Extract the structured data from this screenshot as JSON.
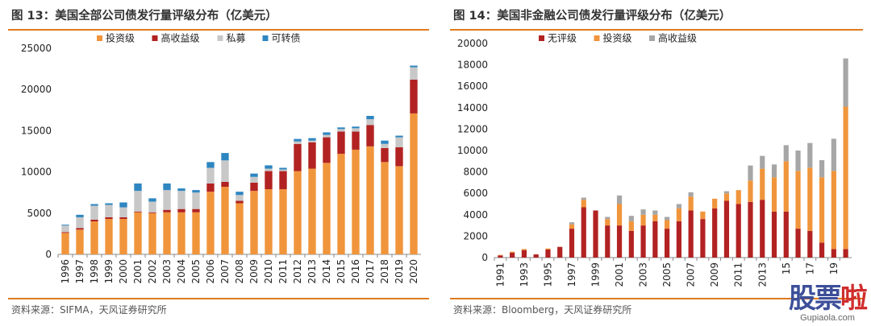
{
  "charts": [
    {
      "title": "图 13：美国全部公司债发行量评级分布（亿美元）",
      "source": "资料来源：SIFMA，天风证券研究所",
      "chart_data": {
        "type": "bar",
        "stacked": true,
        "categories": [
          "1996",
          "1997",
          "1998",
          "1999",
          "2000",
          "2001",
          "2002",
          "2003",
          "2004",
          "2005",
          "2006",
          "2007",
          "2008",
          "2009",
          "2010",
          "2011",
          "2012",
          "2013",
          "2014",
          "2015",
          "2016",
          "2017",
          "2018",
          "2019",
          "2020"
        ],
        "series": [
          {
            "name": "投资级",
            "color": "#f0953c",
            "values": [
              2600,
              3000,
              4000,
              4300,
              4300,
              5100,
              5000,
              5100,
              5100,
              5100,
              7600,
              8200,
              6200,
              7700,
              7900,
              7900,
              10100,
              10400,
              11100,
              12200,
              12700,
              13100,
              11200,
              10700,
              17100
            ]
          },
          {
            "name": "高收益级",
            "color": "#b22222",
            "values": [
              100,
              200,
              200,
              200,
              200,
              100,
              100,
              300,
              400,
              400,
              1000,
              600,
              300,
              1000,
              2200,
              2200,
              3300,
              3200,
              3100,
              2700,
              2200,
              2600,
              1700,
              2300,
              4100
            ]
          },
          {
            "name": "私募",
            "color": "#c8c8c8",
            "values": [
              800,
              1300,
              1700,
              1500,
              1200,
              2500,
              1300,
              2400,
              2200,
              2000,
              1900,
              2600,
              700,
              700,
              300,
              200,
              300,
              200,
              300,
              300,
              400,
              700,
              500,
              1200,
              1500
            ]
          },
          {
            "name": "可转债",
            "color": "#2e86c1",
            "values": [
              100,
              300,
              200,
              200,
              600,
              900,
              400,
              800,
              300,
              300,
              700,
              900,
              400,
              400,
              400,
              200,
              300,
              300,
              300,
              200,
              200,
              400,
              400,
              200,
              200
            ]
          }
        ],
        "ylim": [
          0,
          25000
        ],
        "yticks": [
          0,
          5000,
          10000,
          15000,
          20000,
          25000
        ],
        "ytick_labels": [
          "0",
          "5000",
          "10000",
          "15000",
          "20000",
          "25000"
        ],
        "xtick_labels": [
          "1996",
          "1997",
          "1998",
          "1999",
          "2000",
          "2001",
          "2002",
          "2003",
          "2004",
          "2005",
          "2006",
          "2007",
          "2008",
          "2009",
          "2010",
          "2011",
          "2012",
          "2013",
          "2014",
          "2015",
          "2016",
          "2017",
          "2018",
          "2019",
          "2020"
        ],
        "grid": false,
        "legend_position": "top"
      }
    },
    {
      "title": "图 14：美国非金融公司债发行量评级分布（亿美元）",
      "source": "资料来源：Bloomberg，天风证券研究所",
      "chart_data": {
        "type": "bar",
        "stacked": true,
        "categories": [
          "1991",
          "1992",
          "1993",
          "1994",
          "1995",
          "1996",
          "1997",
          "1998",
          "1999",
          "2000",
          "2001",
          "2002",
          "2003",
          "2004",
          "2005",
          "2006",
          "2007",
          "2008",
          "2009",
          "2010",
          "2011",
          "2012",
          "2013",
          "2014",
          "2015",
          "2016",
          "2017",
          "2018",
          "2019",
          "2020"
        ],
        "series": [
          {
            "name": "无评级",
            "color": "#b22222",
            "values": [
              200,
              450,
              700,
              300,
              750,
              1000,
              2700,
              4700,
              4400,
              3000,
              3000,
              2500,
              3000,
              3400,
              2700,
              3400,
              4400,
              3600,
              4600,
              5300,
              5000,
              5200,
              5400,
              4300,
              4300,
              2700,
              2500,
              1400,
              800,
              800
            ]
          },
          {
            "name": "投资级",
            "color": "#f0953c",
            "values": [
              50,
              100,
              100,
              0,
              100,
              0,
              400,
              700,
              0,
              600,
              2000,
              900,
              1000,
              600,
              800,
              1200,
              1300,
              700,
              900,
              700,
              1300,
              2000,
              2900,
              3200,
              4700,
              5400,
              5900,
              6100,
              7300,
              13300
            ]
          },
          {
            "name": "高收益级",
            "color": "#a6a6a6",
            "values": [
              0,
              0,
              0,
              0,
              0,
              0,
              200,
              200,
              0,
              200,
              800,
              500,
              500,
              400,
              300,
              400,
              400,
              0,
              0,
              200,
              0,
              1400,
              1200,
              1200,
              1500,
              1900,
              2300,
              1600,
              3000,
              4500
            ]
          }
        ],
        "ylim": [
          0,
          20000
        ],
        "yticks": [
          0,
          2000,
          4000,
          6000,
          8000,
          10000,
          12000,
          14000,
          16000,
          18000,
          20000
        ],
        "ytick_labels": [
          "0",
          "2000",
          "4000",
          "6000",
          "8000",
          "10000",
          "12000",
          "14000",
          "16000",
          "18000",
          "20000"
        ],
        "xtick_labels": [
          "1991",
          "",
          "1993",
          "",
          "1995",
          "",
          "1997",
          "",
          "1999",
          "",
          "2001",
          "",
          "2003",
          "",
          "2005",
          "",
          "2007",
          "",
          "2009",
          "",
          "2011",
          "",
          "2013",
          "",
          "15",
          "",
          "17",
          "",
          "19",
          ""
        ],
        "grid": false,
        "legend_position": "top"
      }
    }
  ],
  "watermark": {
    "text_main": "股票",
    "text_accent": "啦",
    "url": "Gupiaola.com"
  }
}
